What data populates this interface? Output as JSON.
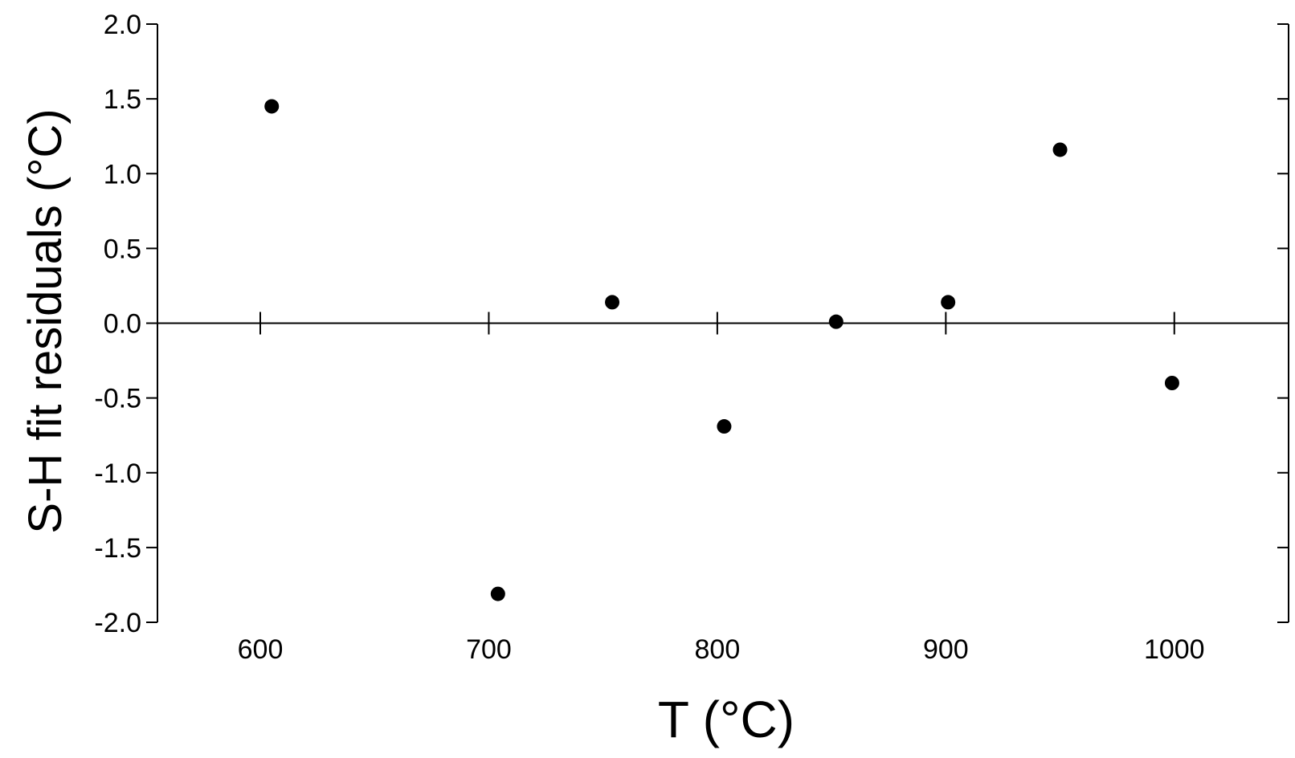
{
  "chart_data": {
    "type": "scatter",
    "title": "",
    "xlabel": "T (°C)",
    "ylabel": "S-H fit residuals (°C)",
    "xlim": [
      555,
      1050
    ],
    "ylim": [
      -2.0,
      2.0
    ],
    "xticks": [
      600,
      700,
      800,
      900,
      1000
    ],
    "yticks": [
      2.0,
      1.5,
      1.0,
      0.5,
      0.0,
      -0.5,
      -1.0,
      -1.5,
      -2.0
    ],
    "ytick_labels": [
      "2.0",
      "1.5",
      "1.0",
      "0.5",
      "0.0",
      "-0.5",
      "-1.0",
      "-1.5",
      "-2.0"
    ],
    "xtick_labels": [
      "600",
      "700",
      "800",
      "900",
      "1000"
    ],
    "zero_line": true,
    "grid": false,
    "marker_color": "#000000",
    "series": [
      {
        "x": [
          605,
          704,
          754,
          803,
          852,
          901,
          950,
          999
        ],
        "y": [
          1.45,
          -1.81,
          0.14,
          -0.69,
          0.01,
          0.14,
          1.16,
          -0.4
        ]
      }
    ]
  }
}
